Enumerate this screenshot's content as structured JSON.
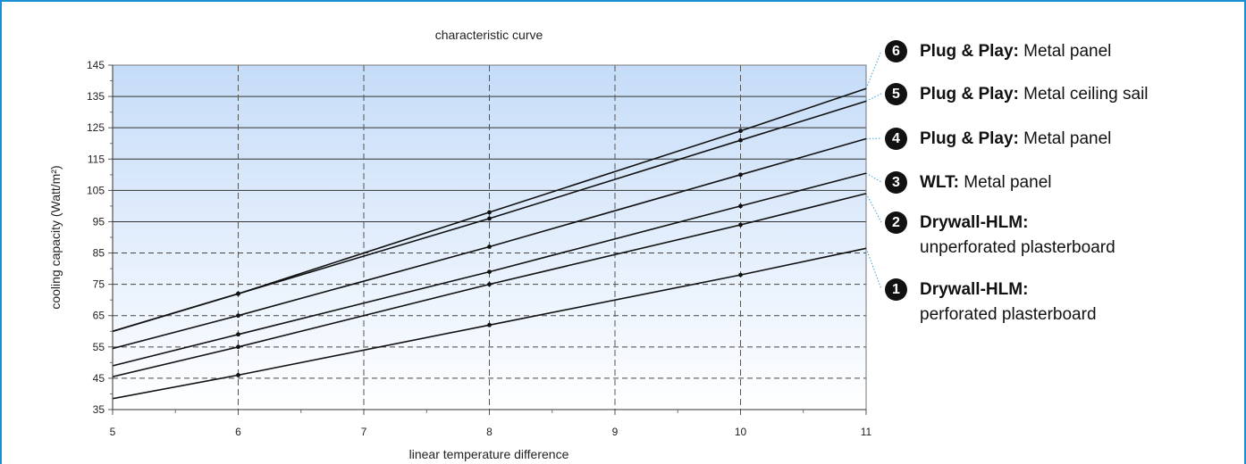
{
  "colors": {
    "frame": "#1a8fd1",
    "plot_top": "#c5dcf8",
    "plot_bottom": "#ffffff",
    "line": "#111111",
    "badge": "#111111",
    "leader": "#3aa0d8"
  },
  "chart_data": {
    "type": "line",
    "title": "characteristic curve",
    "xlabel": "linear temperature difference",
    "ylabel": "cooling capacity (Watt/m²)",
    "xlim": [
      5,
      11
    ],
    "ylim": [
      35,
      145
    ],
    "x_ticks": [
      "5",
      "6",
      "7",
      "8",
      "9",
      "10",
      "11"
    ],
    "y_ticks": [
      "35",
      "45",
      "55",
      "65",
      "75",
      "85",
      "95",
      "105",
      "115",
      "125",
      "135",
      "145"
    ],
    "grid": true,
    "legend_position": "right",
    "series": [
      {
        "badge": "6",
        "bold": "Plug & Play:",
        "text": "Metal panel",
        "x": [
          5,
          6,
          8,
          10,
          11
        ],
        "y": [
          60,
          72,
          98,
          124,
          137.5
        ]
      },
      {
        "badge": "5",
        "bold": "Plug & Play:",
        "text": "Metal ceiling sail",
        "x": [
          5,
          6,
          8,
          10,
          11
        ],
        "y": [
          60,
          72,
          96,
          121,
          133.5
        ]
      },
      {
        "badge": "4",
        "bold": "Plug & Play:",
        "text": "Metal panel",
        "x": [
          5,
          6,
          8,
          10,
          11
        ],
        "y": [
          54.5,
          65,
          87,
          110,
          121.5
        ]
      },
      {
        "badge": "3",
        "bold": "WLT:",
        "text": "Metal panel",
        "x": [
          5,
          6,
          8,
          10,
          11
        ],
        "y": [
          49,
          59,
          79,
          100,
          110.5
        ]
      },
      {
        "badge": "2",
        "bold": "Drywall-HLM:",
        "text": "unperforated plasterboard",
        "x": [
          5,
          6,
          8,
          10,
          11
        ],
        "y": [
          45.5,
          55,
          75,
          94,
          104
        ]
      },
      {
        "badge": "1",
        "bold": "Drywall-HLM:",
        "text": "perforated plasterboard",
        "x": [
          5,
          6,
          8,
          10,
          11
        ],
        "y": [
          38.5,
          46,
          62,
          78,
          86.5
        ]
      }
    ]
  }
}
